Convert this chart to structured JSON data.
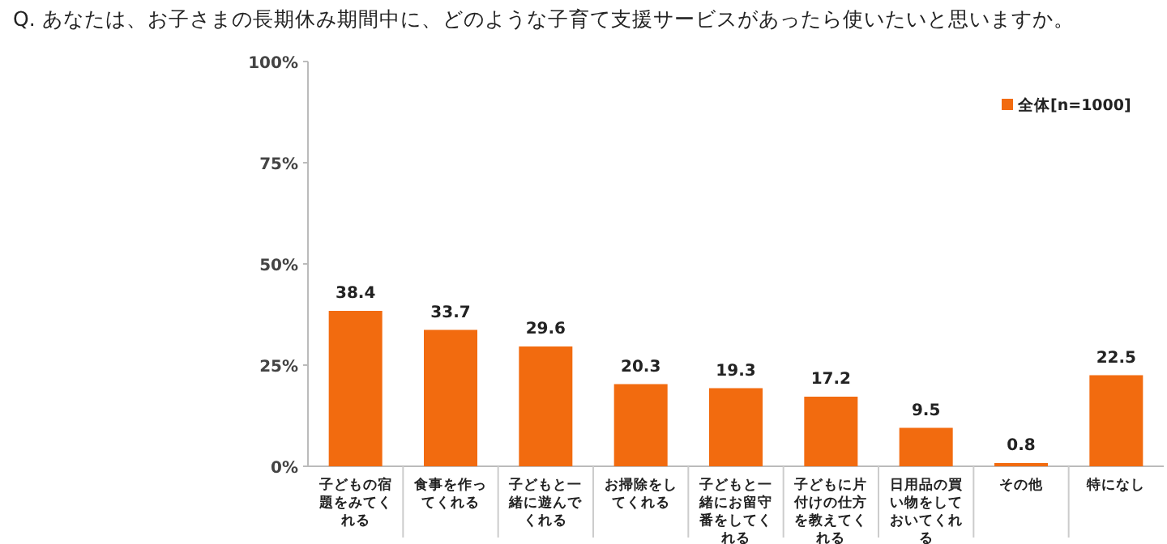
{
  "chart_data": {
    "type": "bar",
    "title": "Q.  あなたは、お子さまの長期休み期間中に、どのような子育て支援サービスがあったら使いたいと思いますか。",
    "categories": [
      "子どもの宿題をみてくれる",
      "食事を作ってくれる",
      "子どもと一緒に遊んでくれる",
      "お掃除をしてくれる",
      "子どもと一緒にお留守番をしてくれる",
      "子どもに片付けの仕方を教えてくれる",
      "日用品の買い物をしておいてくれる",
      "その他",
      "特になし"
    ],
    "series": [
      {
        "name": "全体[n=1000]",
        "color": "#f26b0f",
        "values": [
          38.4,
          33.7,
          29.6,
          20.3,
          19.3,
          17.2,
          9.5,
          0.8,
          22.5
        ]
      }
    ],
    "ylim": [
      0,
      100
    ],
    "yticks": [
      {
        "value": 0,
        "label": "0%"
      },
      {
        "value": 25,
        "label": "25%"
      },
      {
        "value": 50,
        "label": "50%"
      },
      {
        "value": 75,
        "label": "75%"
      },
      {
        "value": 100,
        "label": "100%"
      }
    ],
    "data_labels": true,
    "legend": "top right",
    "grid": false
  }
}
